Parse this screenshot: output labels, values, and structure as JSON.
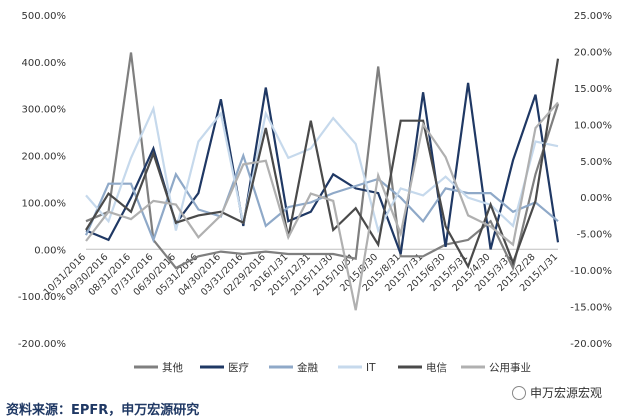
{
  "chart_data": {
    "type": "line",
    "title": "",
    "xlabel": "",
    "ylabel": "",
    "categories": [
      "10/31/2016",
      "09/30/2016",
      "08/31/2016",
      "07/31/2016",
      "06/30/2016",
      "05/31/2016",
      "04/30/2016",
      "03/31/2016",
      "02/29/2016",
      "2016/1/31",
      "2015/12/31",
      "2015/11/30",
      "2015/10/31",
      "2015/9/30",
      "2015/8/31",
      "2015/7/31",
      "2015/6/30",
      "2015/5/31",
      "2015/4/30",
      "2015/3/31",
      "2015/2/28",
      "2015/1/31"
    ],
    "x_tick_labels": [
      "10/31/2016",
      "09/30/2016",
      "08/31/2016",
      "07/31/2016",
      "06/30/2016",
      "05/31/2016",
      "04/30/2016",
      "03/31/2016",
      "02/29/2016",
      "2016/1/31",
      "2015/12/31",
      "2015/11/30",
      "2015/10/31",
      "2015/9/30",
      "2015/8/31",
      "2015/7/31",
      "2015/6/30",
      "2015/5/31",
      "2015/4/30",
      "2015/3/31",
      "2015/2/28",
      "2015/1/31"
    ],
    "y_left_ticks": [
      "-200.00%",
      "-100.00%",
      "0.00%",
      "100.00%",
      "200.00%",
      "300.00%",
      "400.00%",
      "500.00%"
    ],
    "y_right_ticks": [
      "-20.00%",
      "-15.00%",
      "-10.00%",
      "-5.00%",
      "0.00%",
      "5.00%",
      "10.00%",
      "15.00%",
      "20.00%",
      "25.00%"
    ],
    "ylim_left": [
      -200,
      500
    ],
    "ylim_right": [
      -20,
      25
    ],
    "legend_position": "bottom",
    "series": [
      {
        "name": "其他",
        "axis": "left",
        "color": "#7f7f7f",
        "width": 2.2,
        "values": [
          60,
          80,
          420,
          20,
          -40,
          -15,
          -5,
          -10,
          -5,
          -10,
          -10,
          -10,
          -20,
          390,
          -15,
          -15,
          10,
          20,
          60,
          -40,
          160,
          310
        ]
      },
      {
        "name": "医疗",
        "axis": "left",
        "color": "#1f3864",
        "width": 2.2,
        "values": [
          40,
          20,
          110,
          215,
          55,
          120,
          320,
          50,
          345,
          60,
          80,
          160,
          130,
          120,
          -10,
          335,
          5,
          355,
          0,
          190,
          330,
          15
        ]
      },
      {
        "name": "金融",
        "axis": "left",
        "color": "#8fa9c8",
        "width": 2.2,
        "values": [
          30,
          140,
          140,
          20,
          160,
          85,
          70,
          200,
          50,
          90,
          100,
          120,
          135,
          150,
          110,
          60,
          130,
          120,
          120,
          80,
          100,
          60
        ]
      },
      {
        "name": "IT",
        "axis": "left",
        "color": "#c6d9ec",
        "width": 2.2,
        "values": [
          115,
          60,
          195,
          300,
          40,
          230,
          290,
          55,
          290,
          195,
          215,
          280,
          225,
          40,
          130,
          115,
          155,
          110,
          95,
          50,
          230,
          220
        ]
      },
      {
        "name": "电信",
        "axis": "right",
        "color": "#4a4a4a",
        "width": 2.2,
        "values": [
          -4.5,
          0.5,
          -2.0,
          6.0,
          -3.5,
          -2.5,
          -2.0,
          -3.5,
          9.5,
          -5.5,
          10.5,
          -4.5,
          -1.5,
          -6.5,
          10.5,
          10.5,
          -4.0,
          -9.5,
          -1.0,
          -9.0,
          -0.5,
          19.0
        ]
      },
      {
        "name": "公用事业",
        "axis": "right",
        "color": "#b0b0b0",
        "width": 2.2,
        "values": [
          -6.0,
          -2.0,
          -3.0,
          -0.5,
          -1.0,
          -5.5,
          -2.5,
          4.5,
          5.0,
          -5.5,
          0.5,
          -0.5,
          -15.5,
          3.0,
          -5.0,
          10.0,
          5.5,
          -2.5,
          -4.0,
          -6.5,
          9.5,
          13.0
        ]
      }
    ]
  },
  "source_text": "资料来源：EPFR，申万宏源研究",
  "logo_text": "申万宏源宏观"
}
